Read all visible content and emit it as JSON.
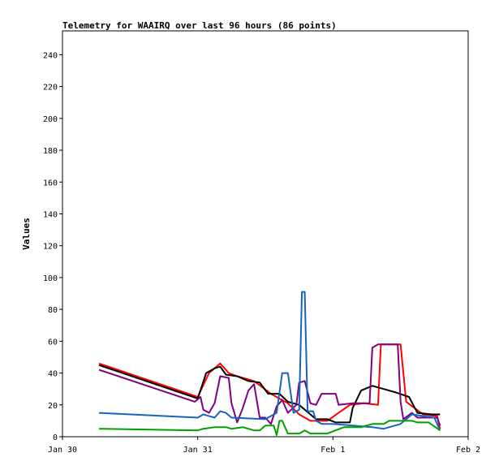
{
  "chart_data": {
    "type": "line",
    "title": "Telemetry for WAAIRQ over last 96 hours (86 points)",
    "xlabel": "",
    "ylabel": "Values",
    "ylim": [
      0,
      255
    ],
    "yticks": [
      0,
      20,
      40,
      60,
      80,
      100,
      120,
      140,
      160,
      180,
      200,
      220,
      240
    ],
    "xlim": [
      "2020-01-30 00:00",
      "2020-02-02 00:00"
    ],
    "xtick_labels": [
      "Jan 30",
      "Jan 31",
      "Feb 1",
      "Feb 2"
    ],
    "grid": false,
    "legend": "none",
    "series": [
      {
        "color": "#ff0000",
        "points": [
          [
            "2020-01-30 06:30",
            46
          ],
          [
            "2020-01-31 00:00",
            25
          ],
          [
            "2020-01-31 02:00",
            40
          ],
          [
            "2020-01-31 04:00",
            46
          ],
          [
            "2020-01-31 05:30",
            40
          ],
          [
            "2020-01-31 07:00",
            38
          ],
          [
            "2020-01-31 10:00",
            35
          ],
          [
            "2020-01-31 13:00",
            27
          ],
          [
            "2020-01-31 16:00",
            21
          ],
          [
            "2020-01-31 18:00",
            14
          ],
          [
            "2020-01-31 20:00",
            10
          ],
          [
            "2020-01-31 23:00",
            10
          ],
          [
            "2020-02-01 01:00",
            15
          ],
          [
            "2020-02-01 03:00",
            20
          ],
          [
            "2020-02-01 05:30",
            21
          ],
          [
            "2020-02-01 08:00",
            20
          ],
          [
            "2020-02-01 08:30",
            58
          ],
          [
            "2020-02-01 12:00",
            58
          ],
          [
            "2020-02-01 13:00",
            22
          ],
          [
            "2020-02-01 16:00",
            14
          ],
          [
            "2020-02-01 18:30",
            13
          ],
          [
            "2020-02-01 19:00",
            5
          ]
        ]
      },
      {
        "color": "#000000",
        "points": [
          [
            "2020-01-30 06:30",
            45
          ],
          [
            "2020-01-31 00:00",
            24
          ],
          [
            "2020-01-31 01:30",
            40
          ],
          [
            "2020-01-31 03:00",
            43
          ],
          [
            "2020-01-31 04:00",
            44
          ],
          [
            "2020-01-31 05:00",
            39
          ],
          [
            "2020-01-31 07:00",
            38
          ],
          [
            "2020-01-31 09:00",
            35
          ],
          [
            "2020-01-31 11:00",
            34
          ],
          [
            "2020-01-31 12:30",
            27
          ],
          [
            "2020-01-31 14:30",
            27
          ],
          [
            "2020-01-31 16:00",
            22
          ],
          [
            "2020-01-31 18:00",
            20
          ],
          [
            "2020-01-31 21:00",
            11
          ],
          [
            "2020-01-31 23:00",
            11
          ],
          [
            "2020-02-01 00:30",
            9
          ],
          [
            "2020-02-01 03:00",
            9
          ],
          [
            "2020-02-01 03:30",
            18
          ],
          [
            "2020-02-01 05:00",
            29
          ],
          [
            "2020-02-01 07:00",
            32
          ],
          [
            "2020-02-01 09:00",
            30
          ],
          [
            "2020-02-01 11:00",
            28
          ],
          [
            "2020-02-01 13:30",
            25
          ],
          [
            "2020-02-01 15:00",
            15
          ],
          [
            "2020-02-01 17:30",
            14
          ],
          [
            "2020-02-01 19:00",
            14
          ]
        ]
      },
      {
        "color": "#800080",
        "points": [
          [
            "2020-01-30 06:30",
            42
          ],
          [
            "2020-01-30 23:30",
            22
          ],
          [
            "2020-01-31 00:30",
            25
          ],
          [
            "2020-01-31 01:00",
            17
          ],
          [
            "2020-01-31 02:00",
            15
          ],
          [
            "2020-01-31 03:00",
            21
          ],
          [
            "2020-01-31 04:00",
            38
          ],
          [
            "2020-01-31 05:30",
            37
          ],
          [
            "2020-01-31 06:00",
            21
          ],
          [
            "2020-01-31 07:00",
            9
          ],
          [
            "2020-01-31 08:00",
            18
          ],
          [
            "2020-01-31 09:00",
            29
          ],
          [
            "2020-01-31 10:00",
            33
          ],
          [
            "2020-01-31 11:00",
            12
          ],
          [
            "2020-01-31 12:00",
            12
          ],
          [
            "2020-01-31 13:00",
            8
          ],
          [
            "2020-01-31 14:00",
            19
          ],
          [
            "2020-01-31 15:00",
            23
          ],
          [
            "2020-01-31 16:00",
            15
          ],
          [
            "2020-01-31 17:30",
            20
          ],
          [
            "2020-01-31 18:00",
            34
          ],
          [
            "2020-01-31 19:00",
            35
          ],
          [
            "2020-01-31 20:00",
            21
          ],
          [
            "2020-01-31 21:00",
            20
          ],
          [
            "2020-01-31 22:00",
            27
          ],
          [
            "2020-02-01 00:30",
            27
          ],
          [
            "2020-02-01 01:00",
            20
          ],
          [
            "2020-02-01 03:30",
            21
          ],
          [
            "2020-02-01 06:30",
            21
          ],
          [
            "2020-02-01 07:00",
            56
          ],
          [
            "2020-02-01 08:00",
            58
          ],
          [
            "2020-02-01 11:30",
            58
          ],
          [
            "2020-02-01 12:00",
            22
          ],
          [
            "2020-02-01 12:30",
            11
          ],
          [
            "2020-02-01 14:00",
            15
          ],
          [
            "2020-02-01 15:00",
            12
          ],
          [
            "2020-02-01 18:30",
            12
          ],
          [
            "2020-02-01 19:00",
            7
          ]
        ]
      },
      {
        "color": "#1565c0",
        "points": [
          [
            "2020-01-30 06:30",
            15
          ],
          [
            "2020-01-31 00:00",
            12
          ],
          [
            "2020-01-31 01:00",
            14
          ],
          [
            "2020-01-31 03:00",
            12
          ],
          [
            "2020-01-31 04:00",
            16
          ],
          [
            "2020-01-31 05:00",
            15
          ],
          [
            "2020-01-31 06:00",
            12
          ],
          [
            "2020-01-31 12:00",
            11
          ],
          [
            "2020-01-31 14:00",
            15
          ],
          [
            "2020-01-31 15:00",
            40
          ],
          [
            "2020-01-31 16:00",
            40
          ],
          [
            "2020-01-31 17:00",
            15
          ],
          [
            "2020-01-31 18:00",
            17
          ],
          [
            "2020-01-31 18:30",
            91
          ],
          [
            "2020-01-31 19:00",
            91
          ],
          [
            "2020-01-31 19:30",
            16
          ],
          [
            "2020-01-31 20:30",
            16
          ],
          [
            "2020-01-31 21:00",
            10
          ],
          [
            "2020-01-31 22:00",
            8
          ],
          [
            "2020-02-01 00:00",
            8
          ],
          [
            "2020-02-01 07:00",
            6
          ],
          [
            "2020-02-01 09:00",
            5
          ],
          [
            "2020-02-01 12:00",
            8
          ],
          [
            "2020-02-01 14:00",
            14
          ],
          [
            "2020-02-01 16:00",
            13
          ],
          [
            "2020-02-01 18:00",
            12
          ],
          [
            "2020-02-01 19:00",
            4
          ]
        ]
      },
      {
        "color": "#00a000",
        "points": [
          [
            "2020-01-30 06:30",
            5
          ],
          [
            "2020-01-31 00:00",
            4
          ],
          [
            "2020-01-31 01:00",
            5
          ],
          [
            "2020-01-31 03:00",
            6
          ],
          [
            "2020-01-31 05:00",
            6
          ],
          [
            "2020-01-31 06:00",
            5
          ],
          [
            "2020-01-31 08:00",
            6
          ],
          [
            "2020-01-31 10:00",
            4
          ],
          [
            "2020-01-31 11:00",
            4
          ],
          [
            "2020-01-31 12:00",
            7
          ],
          [
            "2020-01-31 13:30",
            7
          ],
          [
            "2020-01-31 14:00",
            1
          ],
          [
            "2020-01-31 14:30",
            10
          ],
          [
            "2020-01-31 15:00",
            10
          ],
          [
            "2020-01-31 16:00",
            2
          ],
          [
            "2020-01-31 18:00",
            2
          ],
          [
            "2020-01-31 19:00",
            4
          ],
          [
            "2020-01-31 20:00",
            2
          ],
          [
            "2020-01-31 23:00",
            2
          ],
          [
            "2020-02-01 02:00",
            6
          ],
          [
            "2020-02-01 05:00",
            6
          ],
          [
            "2020-02-01 07:00",
            8
          ],
          [
            "2020-02-01 09:00",
            8
          ],
          [
            "2020-02-01 10:00",
            10
          ],
          [
            "2020-02-01 12:00",
            10
          ],
          [
            "2020-02-01 14:00",
            10
          ],
          [
            "2020-02-01 15:00",
            9
          ],
          [
            "2020-02-01 17:00",
            9
          ],
          [
            "2020-02-01 19:00",
            4
          ]
        ]
      }
    ]
  }
}
